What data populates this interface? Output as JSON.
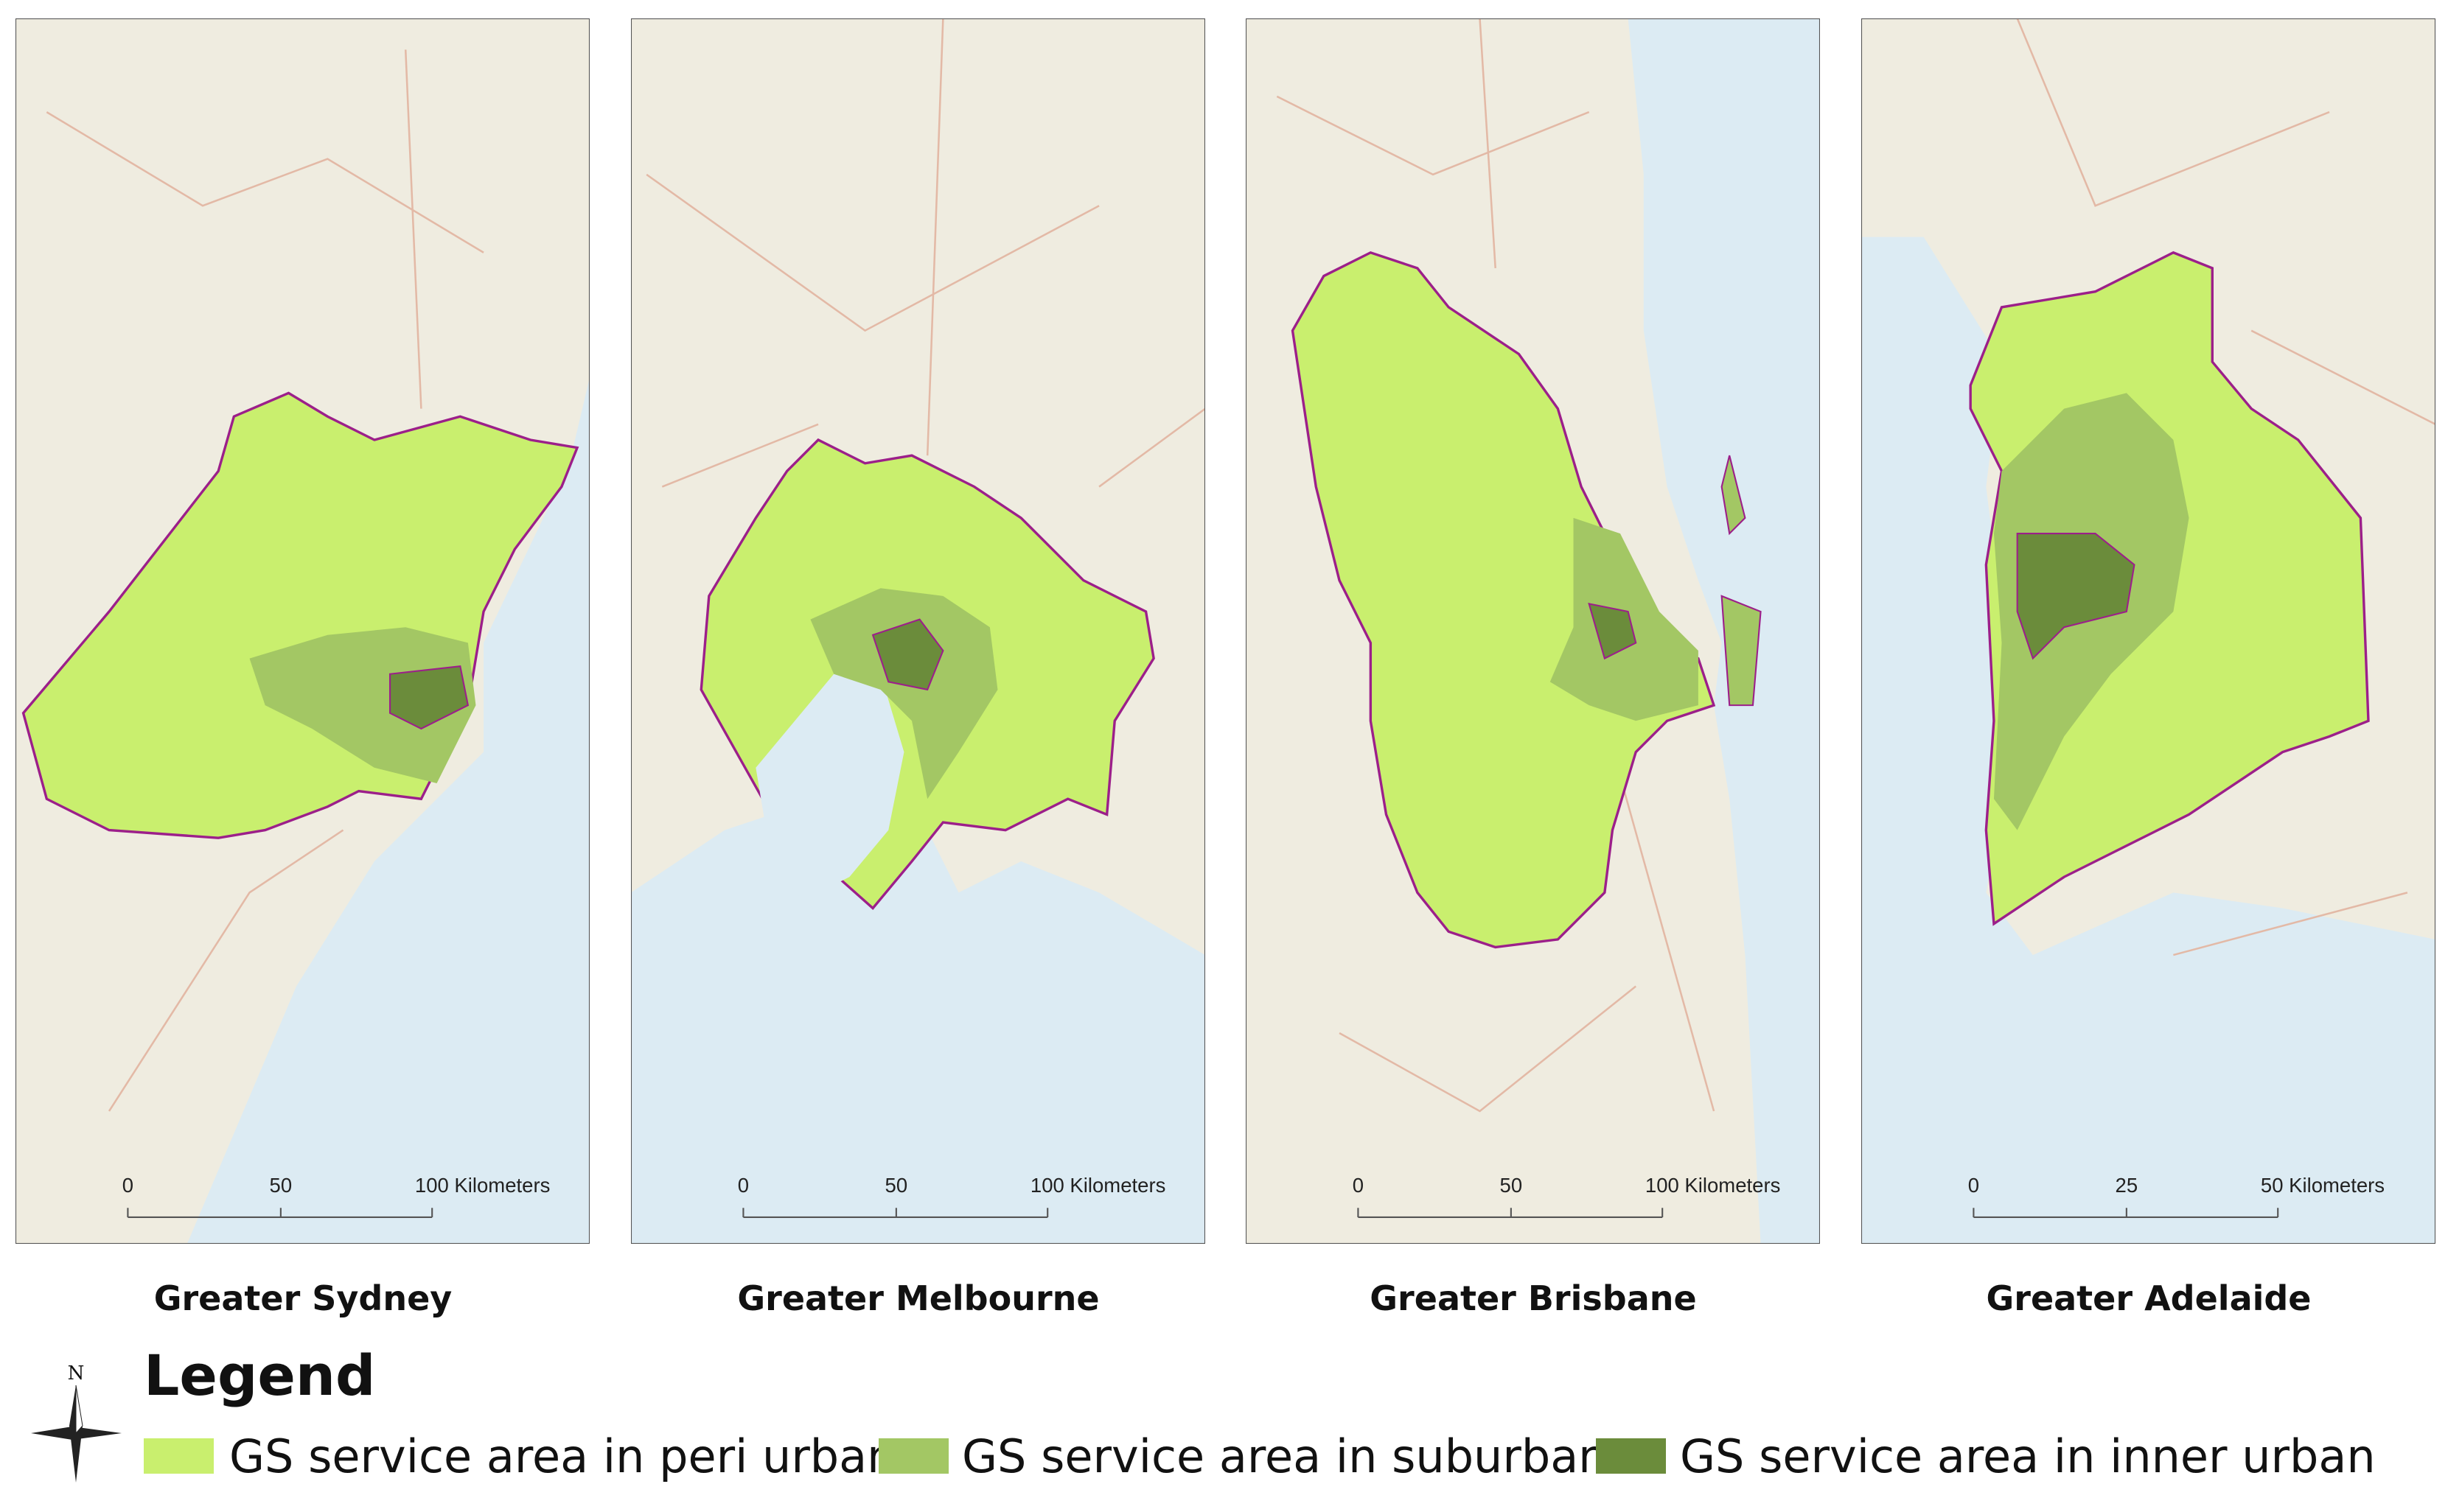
{
  "panels": [
    {
      "title": "Greater Sydney",
      "scale_labels": [
        "0",
        "50",
        "100 Kilometers"
      ]
    },
    {
      "title": "Greater Melbourne",
      "scale_labels": [
        "0",
        "50",
        "100 Kilometers"
      ]
    },
    {
      "title": "Greater Brisbane",
      "scale_labels": [
        "0",
        "50",
        "100 Kilometers"
      ]
    },
    {
      "title": "Greater Adelaide",
      "scale_labels": [
        "0",
        "25",
        "50 Kilometers"
      ]
    }
  ],
  "legend": {
    "title": "Legend",
    "items": [
      "GS service area in peri urban",
      "GS service area in suburban",
      "GS service area in inner urban"
    ]
  },
  "compass": "N"
}
